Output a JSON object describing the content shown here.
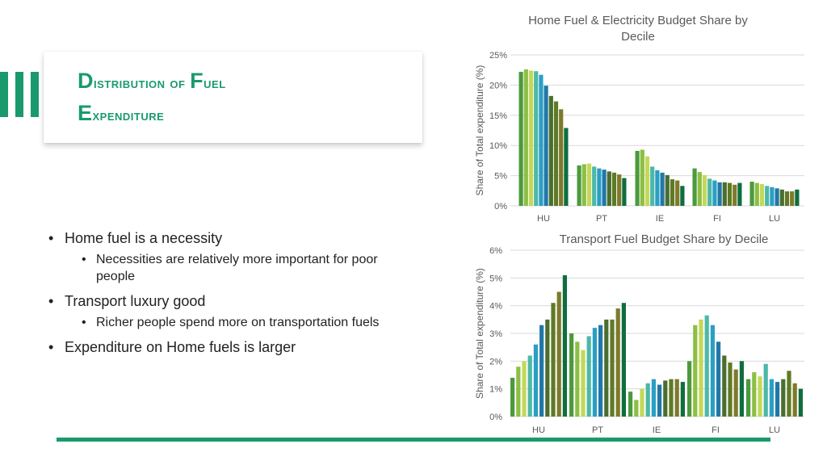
{
  "slide": {
    "title_line1": {
      "first": "D",
      "rest": "istribution of ",
      "first2": "F",
      "rest2": "uel"
    },
    "title_line2": {
      "first": "E",
      "rest": "xpenditure"
    },
    "accent_color": "#1a9a6c"
  },
  "bullets": [
    {
      "level": 1,
      "text": "Home fuel is a necessity"
    },
    {
      "level": 2,
      "text": "Necessities are relatively more important for poor people"
    },
    {
      "level": 1,
      "text": "Transport luxury good"
    },
    {
      "level": 2,
      "text": "Richer people spend more on transportation fuels"
    },
    {
      "level": 1,
      "text": "Expenditure on Home fuels is larger"
    }
  ],
  "chart_data": [
    {
      "type": "bar",
      "title": "Home Fuel & Electricity Budget Share by Decile",
      "title_lines": [
        "Home Fuel & Electricity Budget Share by",
        "Decile"
      ],
      "ylabel": "Share of Total expenditure (%)",
      "ylim": [
        0,
        25
      ],
      "yticks": [
        "0%",
        "5%",
        "10%",
        "15%",
        "20%",
        "25%"
      ],
      "grid": true,
      "categories": [
        "HU",
        "PT",
        "IE",
        "FI",
        "LU"
      ],
      "values_by_category": [
        [
          22.2,
          22.6,
          22.4,
          22.3,
          21.7,
          19.9,
          18.2,
          17.3,
          16.0,
          12.9
        ],
        [
          6.7,
          6.9,
          7.0,
          6.5,
          6.2,
          6.0,
          5.7,
          5.5,
          5.2,
          4.6
        ],
        [
          9.1,
          9.3,
          8.2,
          6.5,
          5.9,
          5.5,
          5.1,
          4.4,
          4.2,
          3.3
        ],
        [
          6.2,
          5.6,
          5.1,
          4.5,
          4.2,
          3.9,
          3.9,
          3.8,
          3.5,
          3.8
        ],
        [
          4.0,
          3.8,
          3.6,
          3.3,
          3.1,
          2.9,
          2.7,
          2.4,
          2.4,
          2.7
        ]
      ]
    },
    {
      "type": "bar",
      "title": "Transport Fuel Budget Share by Decile",
      "title_lines": [
        "Transport Fuel Budget Share by Decile"
      ],
      "ylabel": "Share of Total expenditure (%)",
      "ylim": [
        0,
        6
      ],
      "yticks": [
        "0%",
        "1%",
        "2%",
        "3%",
        "4%",
        "5%",
        "6%"
      ],
      "grid": true,
      "categories": [
        "HU",
        "PT",
        "IE",
        "FI",
        "LU"
      ],
      "values_by_category": [
        [
          1.4,
          1.8,
          2.0,
          2.2,
          2.6,
          3.3,
          3.5,
          4.1,
          4.5,
          5.1
        ],
        [
          3.0,
          2.7,
          2.4,
          2.9,
          3.2,
          3.3,
          3.5,
          3.5,
          3.9,
          4.1
        ],
        [
          0.9,
          0.6,
          1.0,
          1.2,
          1.35,
          1.15,
          1.3,
          1.35,
          1.35,
          1.25
        ],
        [
          2.0,
          3.3,
          3.5,
          3.65,
          3.3,
          2.7,
          2.2,
          1.95,
          1.7,
          2.0
        ],
        [
          1.35,
          1.6,
          1.45,
          1.9,
          1.35,
          1.25,
          1.35,
          1.65,
          1.2,
          1.0
        ]
      ]
    }
  ],
  "decile_colors": [
    "#4c9a3c",
    "#8cbf45",
    "#c3d858",
    "#4db8a8",
    "#2a9fc4",
    "#2178a8",
    "#4a6e2f",
    "#5f7a24",
    "#7e7a2c",
    "#0e6e3e"
  ]
}
